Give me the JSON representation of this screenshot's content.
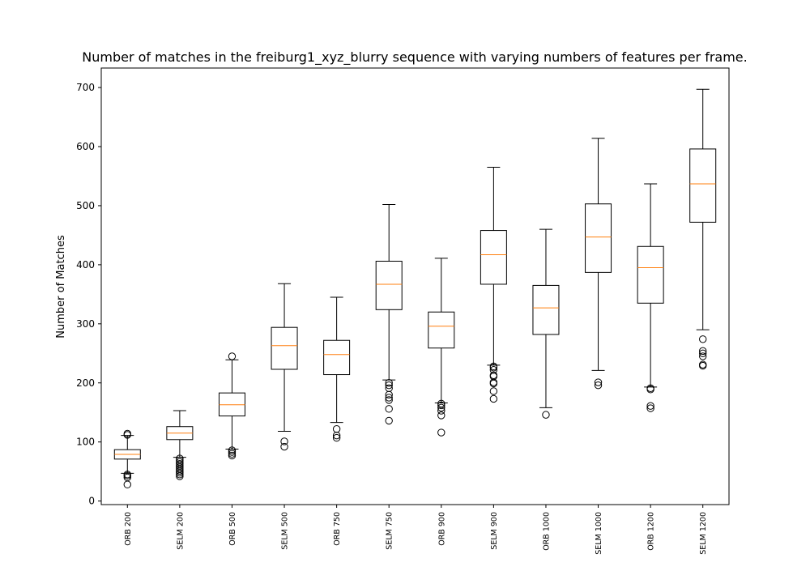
{
  "chart_data": {
    "type": "box",
    "title": "Number of matches in the freiburg1_xyz_blurry sequence with varying numbers of features per frame.",
    "xlabel": "",
    "ylabel": "Number of Matches",
    "ylim": [
      -6,
      733
    ],
    "yticks": [
      0,
      100,
      200,
      300,
      400,
      500,
      600,
      700
    ],
    "grid": false,
    "colors": {
      "box": "#000000",
      "median": "#ff7f0e",
      "flier": "#000000"
    },
    "categories": [
      "ORB 200",
      "SELM 200",
      "ORB 500",
      "SELM 500",
      "ORB 750",
      "SELM 750",
      "ORB 900",
      "SELM 900",
      "ORB 1000",
      "SELM 1000",
      "ORB 1200",
      "SELM 1200"
    ],
    "boxes": [
      {
        "whisker_low": 47,
        "q1": 71,
        "median": 79,
        "q3": 87,
        "whisker_high": 111,
        "fliers": [
          28,
          40,
          43,
          45,
          112,
          114
        ]
      },
      {
        "whisker_low": 74,
        "q1": 104,
        "median": 115,
        "q3": 126,
        "whisker_high": 153,
        "fliers": [
          42,
          45,
          48,
          51,
          54,
          57,
          60,
          63,
          66,
          69,
          72
        ]
      },
      {
        "whisker_low": 88,
        "q1": 144,
        "median": 163,
        "q3": 183,
        "whisker_high": 239,
        "fliers": [
          77,
          80,
          83,
          86,
          245
        ]
      },
      {
        "whisker_low": 118,
        "q1": 223,
        "median": 263,
        "q3": 294,
        "whisker_high": 368,
        "fliers": [
          92,
          101
        ]
      },
      {
        "whisker_low": 133,
        "q1": 214,
        "median": 248,
        "q3": 272,
        "whisker_high": 345,
        "fliers": [
          107,
          111,
          122
        ]
      },
      {
        "whisker_low": 205,
        "q1": 324,
        "median": 367,
        "q3": 406,
        "whisker_high": 502,
        "fliers": [
          136,
          156,
          171,
          175,
          180,
          191,
          196,
          200
        ]
      },
      {
        "whisker_low": 166,
        "q1": 259,
        "median": 296,
        "q3": 320,
        "whisker_high": 411,
        "fliers": [
          116,
          145,
          153,
          158,
          162,
          165
        ]
      },
      {
        "whisker_low": 230,
        "q1": 367,
        "median": 417,
        "q3": 458,
        "whisker_high": 565,
        "fliers": [
          173,
          186,
          199,
          201,
          211,
          213,
          222,
          226,
          228
        ]
      },
      {
        "whisker_low": 158,
        "q1": 282,
        "median": 327,
        "q3": 365,
        "whisker_high": 460,
        "fliers": [
          146
        ]
      },
      {
        "whisker_low": 221,
        "q1": 387,
        "median": 447,
        "q3": 503,
        "whisker_high": 614,
        "fliers": [
          196,
          201
        ]
      },
      {
        "whisker_low": 193,
        "q1": 335,
        "median": 395,
        "q3": 431,
        "whisker_high": 537,
        "fliers": [
          157,
          161,
          189,
          191
        ]
      },
      {
        "whisker_low": 290,
        "q1": 472,
        "median": 537,
        "q3": 596,
        "whisker_high": 697,
        "fliers": [
          229,
          231,
          245,
          250,
          254,
          274
        ]
      }
    ]
  }
}
